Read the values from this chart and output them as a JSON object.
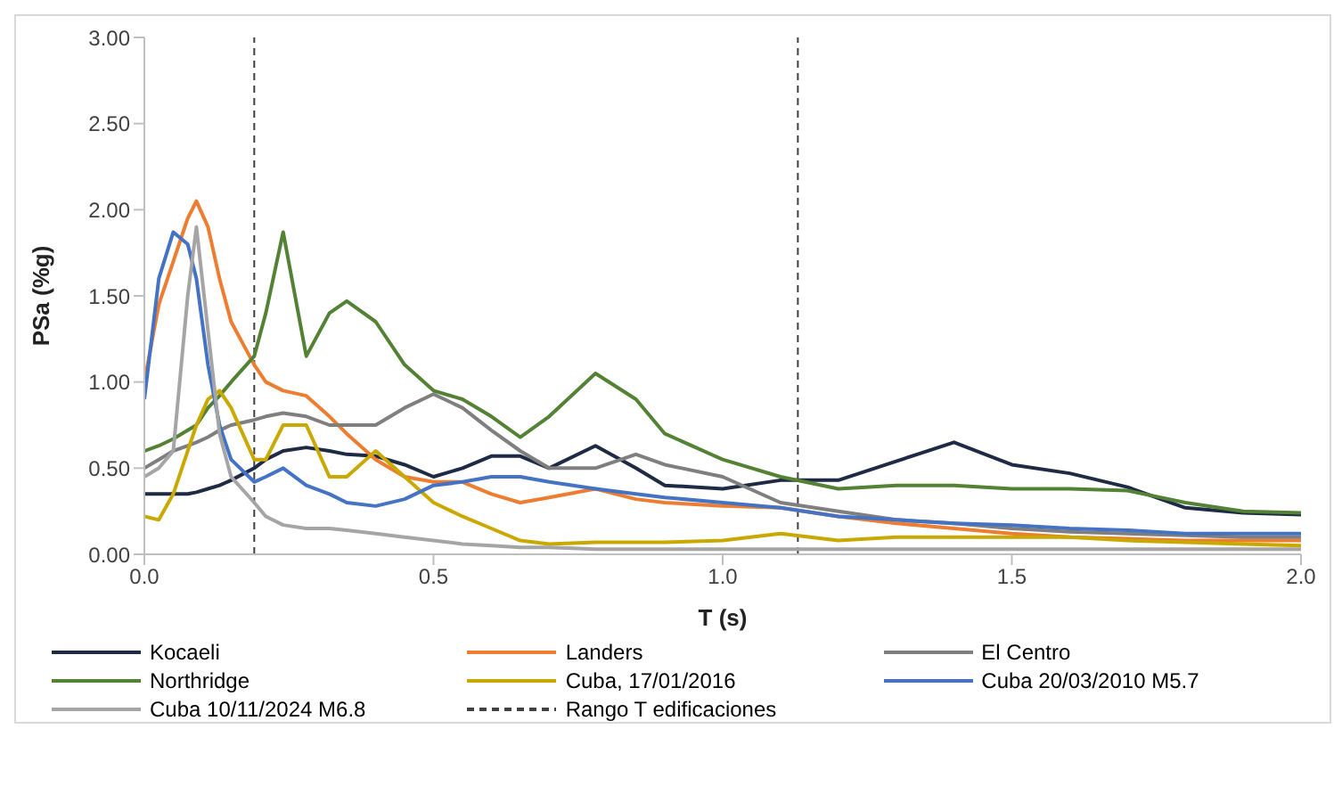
{
  "chart_data": {
    "type": "line",
    "xlabel": "T (s)",
    "ylabel": "PSa (%g)",
    "x": [
      0,
      0.025,
      0.05,
      0.075,
      0.09,
      0.11,
      0.13,
      0.15,
      0.19,
      0.21,
      0.24,
      0.28,
      0.32,
      0.35,
      0.4,
      0.45,
      0.5,
      0.55,
      0.6,
      0.65,
      0.7,
      0.78,
      0.85,
      0.9,
      1.0,
      1.1,
      1.2,
      1.3,
      1.4,
      1.5,
      1.6,
      1.7,
      1.8,
      1.9,
      2.0
    ],
    "series": [
      {
        "name": "Kocaeli",
        "color": "#1f2a44",
        "values": [
          0.35,
          0.35,
          0.35,
          0.35,
          0.36,
          0.38,
          0.4,
          0.43,
          0.5,
          0.55,
          0.6,
          0.62,
          0.6,
          0.58,
          0.57,
          0.52,
          0.45,
          0.5,
          0.57,
          0.57,
          0.5,
          0.63,
          0.5,
          0.4,
          0.38,
          0.43,
          0.43,
          0.54,
          0.65,
          0.52,
          0.47,
          0.39,
          0.27,
          0.24,
          0.23
        ]
      },
      {
        "name": "Landers",
        "color": "#ed7d31",
        "values": [
          1.0,
          1.45,
          1.7,
          1.95,
          2.05,
          1.9,
          1.6,
          1.35,
          1.1,
          1.0,
          0.95,
          0.92,
          0.8,
          0.7,
          0.55,
          0.45,
          0.42,
          0.42,
          0.35,
          0.3,
          0.33,
          0.38,
          0.32,
          0.3,
          0.28,
          0.27,
          0.22,
          0.18,
          0.15,
          0.12,
          0.1,
          0.09,
          0.08,
          0.08,
          0.08
        ]
      },
      {
        "name": "El Centro",
        "color": "#7f7f7f",
        "values": [
          0.5,
          0.55,
          0.6,
          0.63,
          0.65,
          0.68,
          0.72,
          0.75,
          0.78,
          0.8,
          0.82,
          0.8,
          0.75,
          0.75,
          0.75,
          0.85,
          0.93,
          0.85,
          0.72,
          0.6,
          0.5,
          0.5,
          0.58,
          0.52,
          0.45,
          0.3,
          0.25,
          0.2,
          0.18,
          0.15,
          0.13,
          0.12,
          0.11,
          0.1,
          0.1
        ]
      },
      {
        "name": "Northridge",
        "color": "#548235",
        "values": [
          0.6,
          0.63,
          0.67,
          0.72,
          0.75,
          0.85,
          0.92,
          1.0,
          1.15,
          1.4,
          1.87,
          1.15,
          1.4,
          1.47,
          1.35,
          1.1,
          0.95,
          0.9,
          0.8,
          0.68,
          0.8,
          1.05,
          0.9,
          0.7,
          0.55,
          0.45,
          0.38,
          0.4,
          0.4,
          0.38,
          0.38,
          0.37,
          0.3,
          0.25,
          0.24
        ]
      },
      {
        "name": "Cuba, 17/01/2016",
        "color": "#c9a800",
        "values": [
          0.22,
          0.2,
          0.35,
          0.6,
          0.75,
          0.9,
          0.95,
          0.85,
          0.55,
          0.55,
          0.75,
          0.75,
          0.45,
          0.45,
          0.6,
          0.45,
          0.3,
          0.22,
          0.15,
          0.08,
          0.06,
          0.07,
          0.07,
          0.07,
          0.08,
          0.12,
          0.08,
          0.1,
          0.1,
          0.1,
          0.1,
          0.08,
          0.07,
          0.06,
          0.05
        ]
      },
      {
        "name": "Cuba 20/03/2010 M5.7",
        "color": "#4472c4",
        "values": [
          0.9,
          1.6,
          1.87,
          1.8,
          1.6,
          1.1,
          0.75,
          0.55,
          0.42,
          0.45,
          0.5,
          0.4,
          0.35,
          0.3,
          0.28,
          0.32,
          0.4,
          0.42,
          0.45,
          0.45,
          0.42,
          0.38,
          0.35,
          0.33,
          0.3,
          0.27,
          0.22,
          0.2,
          0.18,
          0.17,
          0.15,
          0.14,
          0.12,
          0.12,
          0.12
        ]
      },
      {
        "name": "Cuba 10/11/2024 M6.8",
        "color": "#a5a5a5",
        "values": [
          0.45,
          0.5,
          0.6,
          1.5,
          1.9,
          1.3,
          0.7,
          0.45,
          0.3,
          0.22,
          0.17,
          0.15,
          0.15,
          0.14,
          0.12,
          0.1,
          0.08,
          0.06,
          0.05,
          0.04,
          0.04,
          0.03,
          0.03,
          0.03,
          0.03,
          0.03,
          0.03,
          0.03,
          0.03,
          0.03,
          0.03,
          0.03,
          0.03,
          0.03,
          0.03
        ]
      }
    ],
    "ref_lines": [
      {
        "axis": "x",
        "value": 0.19,
        "label": "Rango T edificaciones",
        "color": "#404040",
        "line_style": "dashed"
      },
      {
        "axis": "x",
        "value": 1.13,
        "color": "#404040",
        "line_style": "dashed"
      }
    ],
    "xlim": [
      0,
      2
    ],
    "xticks": [
      {
        "value": 0,
        "label": "0.0"
      },
      {
        "value": 0.5,
        "label": "0.5"
      },
      {
        "value": 1,
        "label": "1.0"
      },
      {
        "value": 1.5,
        "label": "1.5"
      },
      {
        "value": 2,
        "label": "2.0"
      }
    ],
    "ylim": [
      0,
      3
    ],
    "yticks": [
      {
        "value": 0,
        "label": "0.00"
      },
      {
        "value": 0.5,
        "label": "0.50"
      },
      {
        "value": 1,
        "label": "1.00"
      },
      {
        "value": 1.5,
        "label": "1.50"
      },
      {
        "value": 2,
        "label": "2.00"
      },
      {
        "value": 2.5,
        "label": "2.50"
      },
      {
        "value": 3,
        "label": "3.00"
      }
    ],
    "grid": false,
    "legend": "bottom",
    "marker": "none",
    "line_style": "solid"
  }
}
